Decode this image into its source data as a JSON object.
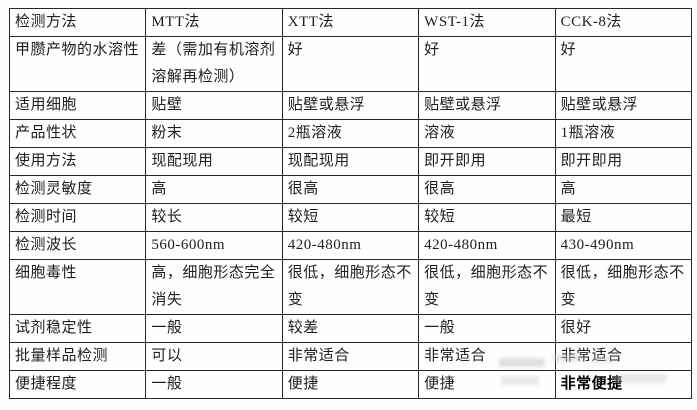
{
  "page": {
    "background_color": "#ffffff",
    "border_color": "#262626",
    "text_color": "#1e1e1e",
    "emphasis_text_color": "#000000"
  },
  "table": {
    "columns": [
      "检测方法",
      "MTT法",
      "XTT法",
      "WST-1法",
      "CCK-8法"
    ],
    "rows": [
      {
        "label": "甲臜产物的水溶性",
        "values": [
          "差（需加有机溶剂溶解再检测）",
          "好",
          "好",
          "好"
        ],
        "tall": true
      },
      {
        "label": "适用细胞",
        "values": [
          "贴壁",
          "贴壁或悬浮",
          "贴壁或悬浮",
          "贴壁或悬浮"
        ],
        "tall": false
      },
      {
        "label": "产品性状",
        "values": [
          "粉末",
          "2瓶溶液",
          "溶液",
          "1瓶溶液"
        ],
        "tall": false
      },
      {
        "label": "使用方法",
        "values": [
          "现配现用",
          "现配现用",
          "即开即用",
          "即开即用"
        ],
        "tall": false
      },
      {
        "label": "检测灵敏度",
        "values": [
          "高",
          "很高",
          "很高",
          "高"
        ],
        "tall": false
      },
      {
        "label": "检测时间",
        "values": [
          "较长",
          "较短",
          "较短",
          "最短"
        ],
        "tall": false
      },
      {
        "label": "检测波长",
        "values": [
          "560-600nm",
          "420-480nm",
          "420-480nm",
          "430-490nm"
        ],
        "tall": false
      },
      {
        "label": "细胞毒性",
        "values": [
          "高，细胞形态完全消失",
          "很低，细胞形态不变",
          "很低，细胞形态不变",
          "很低，细胞形态不变"
        ],
        "tall": true
      },
      {
        "label": "试剂稳定性",
        "values": [
          "一般",
          "较差",
          "一般",
          "很好"
        ],
        "tall": false
      },
      {
        "label": "批量样品检测",
        "values": [
          "可以",
          "非常适合",
          "非常适合",
          "非常适合"
        ],
        "tall": false
      },
      {
        "label": "便捷程度",
        "values": [
          "一般",
          "便捷",
          "便捷",
          "非常便捷"
        ],
        "tall": false
      }
    ],
    "emphasis_cell": {
      "row_index": 10,
      "value_index": 3
    }
  },
  "watermark": {
    "present": true,
    "color": "#c9c9c9"
  }
}
